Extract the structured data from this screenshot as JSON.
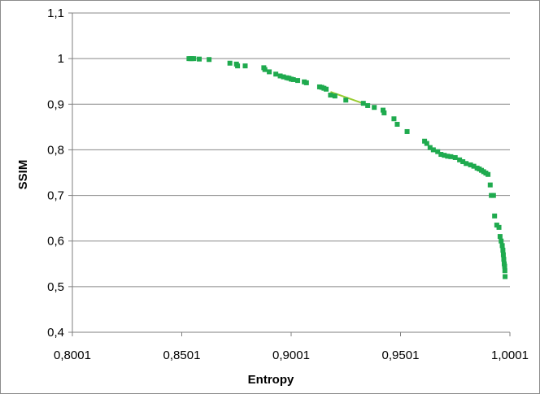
{
  "chart_data": {
    "type": "scatter",
    "title": "",
    "xlabel": "Entropy",
    "ylabel": "SSIM",
    "xlim": [
      0.8001,
      1.0001
    ],
    "ylim": [
      0.4,
      1.1
    ],
    "x_ticks": [
      "0,8001",
      "0,8501",
      "0,9001",
      "0,9501",
      "1,0001"
    ],
    "y_ticks": [
      "0,4",
      "0,5",
      "0,6",
      "0,7",
      "0,8",
      "0,9",
      "1",
      "1,1"
    ],
    "grid": "horizontal",
    "legend": "none",
    "colors": {
      "points": "#1faa4e",
      "trend_line": "#9acd32",
      "grid": "#898989",
      "axis": "#7f7f7f"
    },
    "trend_line": {
      "x": [
        0.9181,
        0.9341
      ],
      "y": [
        0.927,
        0.9
      ]
    },
    "series": [
      {
        "marker": "square",
        "x": [
          0.8534,
          0.8541,
          0.8548,
          0.8556,
          0.8581,
          0.8626,
          0.8721,
          0.8751,
          0.8756,
          0.8791,
          0.8876,
          0.8881,
          0.8901,
          0.8931,
          0.8951,
          0.8966,
          0.8981,
          0.8991,
          0.9001,
          0.9011,
          0.9031,
          0.9061,
          0.9071,
          0.9131,
          0.9141,
          0.9151,
          0.9161,
          0.9181,
          0.9201,
          0.9251,
          0.9331,
          0.9351,
          0.9381,
          0.9421,
          0.9426,
          0.9471,
          0.9486,
          0.9531,
          0.9611,
          0.9621,
          0.9636,
          0.9651,
          0.9671,
          0.9686,
          0.9701,
          0.9716,
          0.9731,
          0.9751,
          0.9771,
          0.9786,
          0.9801,
          0.9821,
          0.9836,
          0.9851,
          0.9861,
          0.9871,
          0.9881,
          0.9891,
          0.9901,
          0.9911,
          0.9916,
          0.9926,
          0.9931,
          0.9941,
          0.9951,
          0.9956,
          0.9961,
          0.9966,
          0.9969,
          0.9971,
          0.9973,
          0.9975,
          0.9977,
          0.9978,
          0.9979
        ],
        "y": [
          1.0,
          1.0,
          1.0,
          1.0,
          0.999,
          0.998,
          0.99,
          0.988,
          0.984,
          0.984,
          0.98,
          0.976,
          0.971,
          0.966,
          0.962,
          0.96,
          0.958,
          0.957,
          0.955,
          0.954,
          0.952,
          0.949,
          0.947,
          0.938,
          0.937,
          0.935,
          0.933,
          0.92,
          0.918,
          0.909,
          0.902,
          0.897,
          0.893,
          0.887,
          0.881,
          0.868,
          0.856,
          0.84,
          0.819,
          0.814,
          0.805,
          0.8,
          0.796,
          0.79,
          0.788,
          0.786,
          0.785,
          0.783,
          0.778,
          0.774,
          0.77,
          0.767,
          0.764,
          0.76,
          0.758,
          0.755,
          0.752,
          0.749,
          0.746,
          0.723,
          0.7,
          0.7,
          0.655,
          0.635,
          0.63,
          0.61,
          0.6,
          0.59,
          0.58,
          0.57,
          0.56,
          0.55,
          0.545,
          0.535,
          0.522
        ]
      }
    ]
  }
}
